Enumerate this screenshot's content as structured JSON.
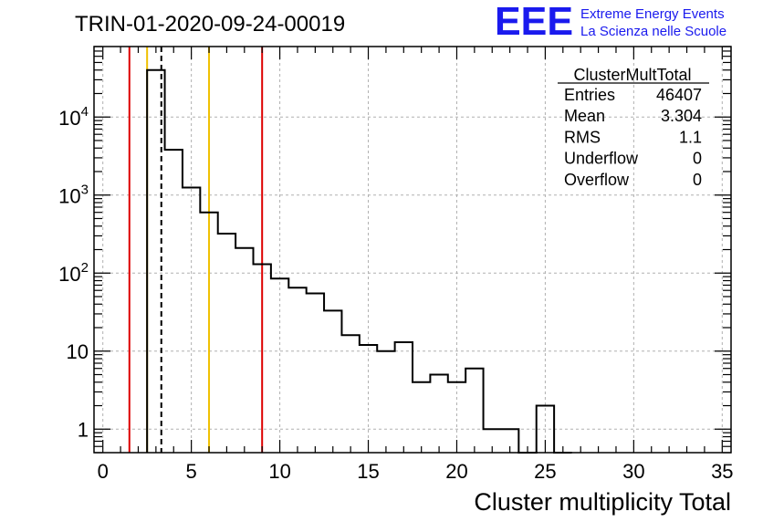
{
  "header": {
    "run_title": "TRIN-01-2020-09-24-00019",
    "logo_text": "EEE",
    "logo_line1": "Extreme Energy Events",
    "logo_line2": "La Scienza nelle Scuole"
  },
  "stats": {
    "title": "ClusterMultTotal",
    "rows": [
      {
        "label": "Entries",
        "value": "46407"
      },
      {
        "label": "Mean",
        "value": "3.304"
      },
      {
        "label": "RMS",
        "value": "1.1"
      },
      {
        "label": "Underflow",
        "value": "0"
      },
      {
        "label": "Overflow",
        "value": "0"
      }
    ]
  },
  "colors": {
    "histogram": "#000000",
    "red_lines": "#dd0000",
    "yellow_lines": "#f0c000",
    "grid": "#b0b0b0",
    "logo": "#1a1aee"
  },
  "chart_data": {
    "type": "bar",
    "histogram": true,
    "xlabel": "Cluster multiplicity Total",
    "ylabel": "",
    "xlim": [
      -0.5,
      35.5
    ],
    "ylim": [
      0.5,
      80000
    ],
    "yscale": "log",
    "grid": true,
    "x_ticks": [
      0,
      5,
      10,
      15,
      20,
      25,
      30,
      35
    ],
    "y_ticks": [
      {
        "value": 1,
        "label": "1"
      },
      {
        "value": 10,
        "label": "10"
      },
      {
        "value": 100,
        "base": "10",
        "exp": "2"
      },
      {
        "value": 1000,
        "base": "10",
        "exp": "3"
      },
      {
        "value": 10000,
        "base": "10",
        "exp": "4"
      }
    ],
    "bin_width": 1,
    "bins": [
      {
        "x": 3,
        "count": 40000
      },
      {
        "x": 4,
        "count": 3800
      },
      {
        "x": 5,
        "count": 1250
      },
      {
        "x": 6,
        "count": 600
      },
      {
        "x": 7,
        "count": 320
      },
      {
        "x": 8,
        "count": 210
      },
      {
        "x": 9,
        "count": 130
      },
      {
        "x": 10,
        "count": 85
      },
      {
        "x": 11,
        "count": 65
      },
      {
        "x": 12,
        "count": 55
      },
      {
        "x": 13,
        "count": 33
      },
      {
        "x": 14,
        "count": 16
      },
      {
        "x": 15,
        "count": 12
      },
      {
        "x": 16,
        "count": 10
      },
      {
        "x": 17,
        "count": 13
      },
      {
        "x": 18,
        "count": 4
      },
      {
        "x": 19,
        "count": 5
      },
      {
        "x": 20,
        "count": 4
      },
      {
        "x": 21,
        "count": 6
      },
      {
        "x": 22,
        "count": 1
      },
      {
        "x": 23,
        "count": 1
      },
      {
        "x": 24,
        "count": 0
      },
      {
        "x": 25,
        "count": 2
      },
      {
        "x": 26,
        "count": 0
      }
    ],
    "vertical_lines": [
      {
        "x": 1.5,
        "color": "red",
        "style": "solid"
      },
      {
        "x": 2.5,
        "color": "yellow",
        "style": "solid"
      },
      {
        "x": 3.304,
        "color": "black",
        "style": "dashed"
      },
      {
        "x": 6.0,
        "color": "yellow",
        "style": "solid"
      },
      {
        "x": 9.0,
        "color": "red",
        "style": "solid"
      }
    ]
  }
}
